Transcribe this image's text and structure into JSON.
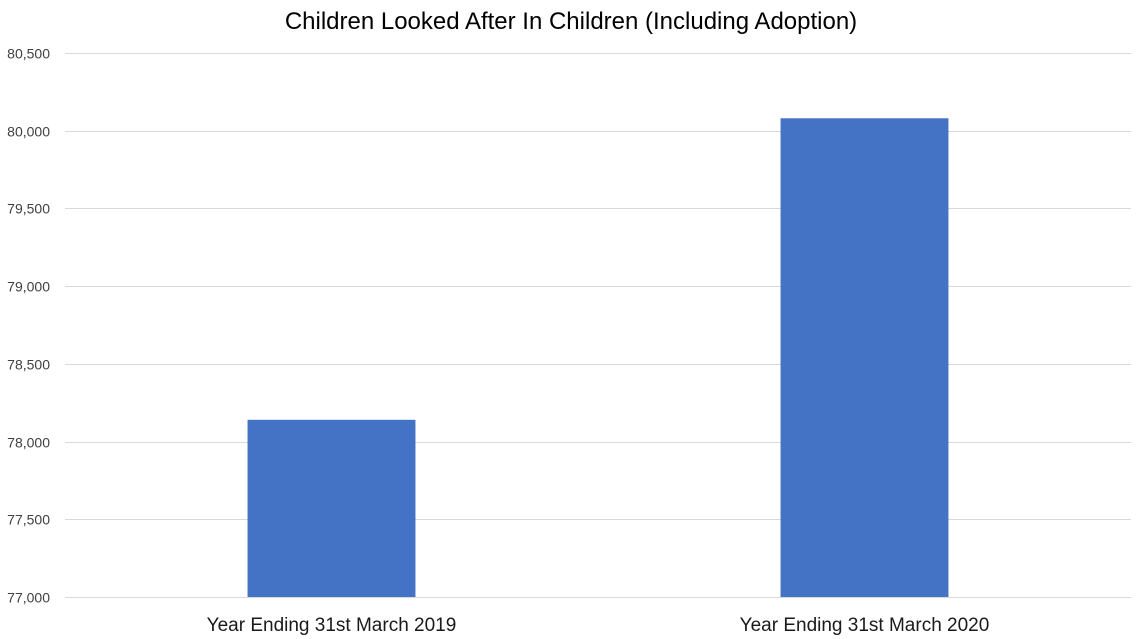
{
  "chart_data": {
    "type": "bar",
    "title": "Children Looked After In Children (Including Adoption)",
    "xlabel": "",
    "ylabel": "",
    "categories": [
      "Year Ending 31st March 2019",
      "Year Ending 31st March 2020"
    ],
    "series": [
      {
        "values": [
          78140,
          80080
        ],
        "color": "#4472C4"
      }
    ],
    "ylim": [
      77000,
      80500
    ],
    "yticks": [
      77000,
      77500,
      78000,
      78500,
      79000,
      79500,
      80000,
      80500
    ],
    "ytick_labels": [
      "77,000",
      "77,500",
      "78,000",
      "78,500",
      "79,000",
      "79,500",
      "80,000",
      "80,500"
    ],
    "grid": true,
    "legend": "none"
  }
}
